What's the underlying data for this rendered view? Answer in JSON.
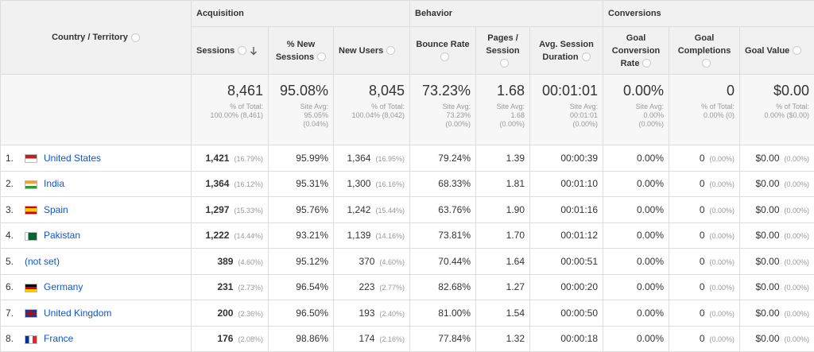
{
  "header": {
    "dimension": "Country / Territory",
    "groups": [
      "Acquisition",
      "Behavior",
      "Conversions"
    ],
    "columns": [
      "Sessions",
      "% New Sessions",
      "New Users",
      "Bounce Rate",
      "Pages / Session",
      "Avg. Session Duration",
      "Goal Conversion Rate",
      "Goal Completions",
      "Goal Value"
    ]
  },
  "totals": [
    {
      "value": "8,461",
      "note": [
        "% of Total:",
        "100.00% (8,461)"
      ]
    },
    {
      "value": "95.08%",
      "note": [
        "Site Avg:",
        "95.05%",
        "(0.04%)"
      ]
    },
    {
      "value": "8,045",
      "note": [
        "% of Total:",
        "100.04% (8,042)"
      ]
    },
    {
      "value": "73.23%",
      "note": [
        "Site Avg:",
        "73.23%",
        "(0.00%)"
      ]
    },
    {
      "value": "1.68",
      "note": [
        "Site Avg:",
        "1.68",
        "(0.00%)"
      ]
    },
    {
      "value": "00:01:01",
      "note": [
        "Site Avg:",
        "00:01:01",
        "(0.00%)"
      ]
    },
    {
      "value": "0.00%",
      "note": [
        "Site Avg:",
        "0.00%",
        "(0.00%)"
      ]
    },
    {
      "value": "0",
      "note": [
        "% of Total:",
        "0.00% (0)"
      ]
    },
    {
      "value": "$0.00",
      "note": [
        "% of Total:",
        "0.00% ($0.00)"
      ]
    }
  ],
  "rows": [
    {
      "rank": "1.",
      "country": "United States",
      "cells": [
        [
          "1,421",
          "(16.79%)"
        ],
        [
          "95.99%"
        ],
        [
          "1,364",
          "(16.95%)"
        ],
        [
          "79.24%"
        ],
        [
          "1.39"
        ],
        [
          "00:00:39"
        ],
        [
          "0.00%"
        ],
        [
          "0",
          "(0.00%)"
        ],
        [
          "$0.00",
          "(0.00%)"
        ]
      ]
    },
    {
      "rank": "2.",
      "country": "India",
      "cells": [
        [
          "1,364",
          "(16.12%)"
        ],
        [
          "95.31%"
        ],
        [
          "1,300",
          "(16.16%)"
        ],
        [
          "68.33%"
        ],
        [
          "1.81"
        ],
        [
          "00:01:10"
        ],
        [
          "0.00%"
        ],
        [
          "0",
          "(0.00%)"
        ],
        [
          "$0.00",
          "(0.00%)"
        ]
      ]
    },
    {
      "rank": "3.",
      "country": "Spain",
      "cells": [
        [
          "1,297",
          "(15.33%)"
        ],
        [
          "95.76%"
        ],
        [
          "1,242",
          "(15.44%)"
        ],
        [
          "63.76%"
        ],
        [
          "1.90"
        ],
        [
          "00:01:16"
        ],
        [
          "0.00%"
        ],
        [
          "0",
          "(0.00%)"
        ],
        [
          "$0.00",
          "(0.00%)"
        ]
      ]
    },
    {
      "rank": "4.",
      "country": "Pakistan",
      "cells": [
        [
          "1,222",
          "(14.44%)"
        ],
        [
          "93.21%"
        ],
        [
          "1,139",
          "(14.16%)"
        ],
        [
          "73.81%"
        ],
        [
          "1.70"
        ],
        [
          "00:01:12"
        ],
        [
          "0.00%"
        ],
        [
          "0",
          "(0.00%)"
        ],
        [
          "$0.00",
          "(0.00%)"
        ]
      ]
    },
    {
      "rank": "5.",
      "country": "(not set)",
      "cells": [
        [
          "389",
          "(4.60%)"
        ],
        [
          "95.12%"
        ],
        [
          "370",
          "(4.60%)"
        ],
        [
          "70.44%"
        ],
        [
          "1.64"
        ],
        [
          "00:00:51"
        ],
        [
          "0.00%"
        ],
        [
          "0",
          "(0.00%)"
        ],
        [
          "$0.00",
          "(0.00%)"
        ]
      ]
    },
    {
      "rank": "6.",
      "country": "Germany",
      "cells": [
        [
          "231",
          "(2.73%)"
        ],
        [
          "96.54%"
        ],
        [
          "223",
          "(2.77%)"
        ],
        [
          "82.68%"
        ],
        [
          "1.27"
        ],
        [
          "00:00:20"
        ],
        [
          "0.00%"
        ],
        [
          "0",
          "(0.00%)"
        ],
        [
          "$0.00",
          "(0.00%)"
        ]
      ]
    },
    {
      "rank": "7.",
      "country": "United Kingdom",
      "cells": [
        [
          "200",
          "(2.36%)"
        ],
        [
          "96.50%"
        ],
        [
          "193",
          "(2.40%)"
        ],
        [
          "81.00%"
        ],
        [
          "1.54"
        ],
        [
          "00:00:50"
        ],
        [
          "0.00%"
        ],
        [
          "0",
          "(0.00%)"
        ],
        [
          "$0.00",
          "(0.00%)"
        ]
      ]
    },
    {
      "rank": "8.",
      "country": "France",
      "cells": [
        [
          "176",
          "(2.08%)"
        ],
        [
          "98.86%"
        ],
        [
          "174",
          "(2.16%)"
        ],
        [
          "77.84%"
        ],
        [
          "1.32"
        ],
        [
          "00:00:18"
        ],
        [
          "0.00%"
        ],
        [
          "0",
          "(0.00%)"
        ],
        [
          "$0.00",
          "(0.00%)"
        ]
      ]
    }
  ]
}
